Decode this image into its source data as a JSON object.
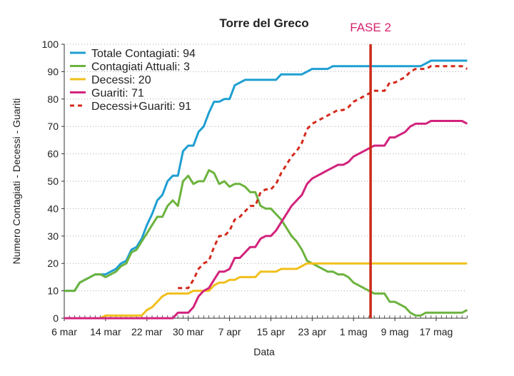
{
  "chart_data": {
    "type": "line",
    "title": "Torre del Greco",
    "xlabel": "Data",
    "ylabel": "Numero Contagiati - Decessi - Guariti",
    "ylim": [
      0,
      100
    ],
    "yticks": [
      "0",
      "10",
      "20",
      "30",
      "40",
      "50",
      "60",
      "70",
      "80",
      "90",
      "100"
    ],
    "xticks": [
      "6 mar",
      "14 mar",
      "22 mar",
      "30 mar",
      "7 apr",
      "15 apr",
      "23 apr",
      "1 mag",
      "9 mag",
      "17 mag"
    ],
    "xtick_step_days": 8,
    "x_start": "6 mar",
    "n_days": 79,
    "grid": "horizontal dotted",
    "legend_position": "top-left",
    "annotation": {
      "label": "FASE 2",
      "day_index": 59.3,
      "color": "#cc2a1a",
      "label_color": "#d4206e"
    },
    "series": [
      {
        "name": "Totale Contagiati: 94",
        "color": "#1e9fd2",
        "dashed": false,
        "values": [
          10,
          10,
          10,
          13,
          14,
          15,
          16,
          16,
          16,
          17,
          18,
          20,
          21,
          25,
          26,
          29,
          34,
          38,
          43,
          45,
          50,
          52,
          52,
          61,
          63,
          63,
          68,
          70,
          75,
          79,
          79,
          80,
          80,
          85,
          86,
          87,
          87,
          87,
          87,
          87,
          87,
          87,
          89,
          89,
          89,
          89,
          89,
          90,
          91,
          91,
          91,
          91,
          92,
          92,
          92,
          92,
          92,
          92,
          92,
          92,
          92,
          92,
          92,
          92,
          92,
          92,
          92,
          92,
          92,
          92,
          93,
          94,
          94,
          94,
          94,
          94,
          94,
          94,
          94
        ]
      },
      {
        "name": "Contagiati Attuali: 3",
        "color": "#6cb33e",
        "dashed": false,
        "values": [
          10,
          10,
          10,
          13,
          14,
          15,
          16,
          16,
          15,
          16,
          17,
          19,
          20,
          24,
          25,
          28,
          31,
          34,
          37,
          37,
          41,
          43,
          41,
          50,
          52,
          49,
          50,
          50,
          54,
          53,
          49,
          50,
          48,
          49,
          49,
          48,
          46,
          46,
          41,
          40,
          40,
          38,
          36,
          33,
          30,
          28,
          25,
          21,
          20,
          19,
          18,
          17,
          17,
          16,
          16,
          15,
          13,
          12,
          11,
          10,
          9,
          9,
          9,
          6,
          6,
          5,
          4,
          2,
          1,
          1,
          2,
          2,
          2,
          2,
          2,
          2,
          2,
          2,
          3
        ]
      },
      {
        "name": "Decessi: 20",
        "color": "#f0bf1c",
        "dashed": false,
        "values": [
          0,
          0,
          0,
          0,
          0,
          0,
          0,
          0,
          1,
          1,
          1,
          1,
          1,
          1,
          1,
          1,
          3,
          4,
          6,
          8,
          9,
          9,
          9,
          9,
          9,
          10,
          10,
          10,
          10,
          12,
          13,
          13,
          14,
          14,
          15,
          15,
          15,
          15,
          17,
          17,
          17,
          17,
          18,
          18,
          18,
          18,
          19,
          20,
          20,
          20,
          20,
          20,
          20,
          20,
          20,
          20,
          20,
          20,
          20,
          20,
          20,
          20,
          20,
          20,
          20,
          20,
          20,
          20,
          20,
          20,
          20,
          20,
          20,
          20,
          20,
          20,
          20,
          20,
          20
        ]
      },
      {
        "name": "Guariti: 71",
        "color": "#d2237c",
        "dashed": false,
        "values": [
          0,
          0,
          0,
          0,
          0,
          0,
          0,
          0,
          0,
          0,
          0,
          0,
          0,
          0,
          0,
          0,
          0,
          0,
          0,
          0,
          0,
          0,
          2,
          2,
          2,
          4,
          8,
          10,
          11,
          14,
          17,
          17,
          18,
          22,
          22,
          24,
          26,
          26,
          29,
          30,
          30,
          32,
          35,
          38,
          41,
          43,
          45,
          49,
          51,
          52,
          53,
          54,
          55,
          56,
          56,
          57,
          59,
          60,
          61,
          62,
          63,
          63,
          63,
          66,
          66,
          67,
          68,
          70,
          71,
          71,
          71,
          72,
          72,
          72,
          72,
          72,
          72,
          72,
          71
        ]
      },
      {
        "name": "Decessi+Guariti: 91",
        "color": "#d42a1c",
        "dashed": true,
        "values": [
          null,
          null,
          null,
          null,
          null,
          null,
          null,
          null,
          null,
          null,
          null,
          null,
          null,
          null,
          null,
          null,
          null,
          null,
          null,
          null,
          null,
          null,
          11,
          11,
          11,
          14,
          18,
          20,
          21,
          26,
          30,
          30,
          32,
          36,
          37,
          39,
          41,
          41,
          46,
          47,
          47,
          49,
          53,
          56,
          59,
          61,
          64,
          69,
          71,
          72,
          73,
          74,
          75,
          76,
          76,
          77,
          79,
          80,
          81,
          82,
          83,
          83,
          83,
          86,
          86,
          87,
          88,
          90,
          91,
          91,
          91,
          92,
          92,
          92,
          92,
          92,
          92,
          92,
          91
        ]
      }
    ]
  }
}
